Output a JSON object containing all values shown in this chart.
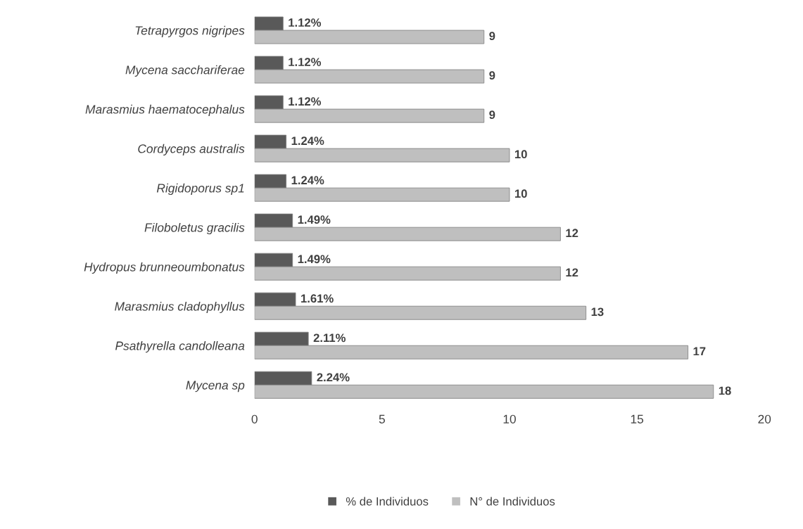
{
  "chart_data": {
    "type": "bar",
    "orientation": "horizontal",
    "categories": [
      "Tetrapyrgos nigripes",
      "Mycena sacchariferae",
      "Marasmius haematocephalus",
      "Cordyceps australis",
      "Rigidoporus sp1",
      "Filoboletus gracilis",
      "Hydropus brunneoumbonatus",
      "Marasmius cladophyllus",
      "Psathyrella candolleana",
      "Mycena sp"
    ],
    "series": [
      {
        "name": "% de Individuos",
        "color": "#595959",
        "values": [
          1.12,
          1.12,
          1.12,
          1.24,
          1.24,
          1.49,
          1.49,
          1.61,
          2.11,
          2.24
        ],
        "value_labels": [
          "1.12%",
          "1.12%",
          "1.12%",
          "1.24%",
          "1.24%",
          "1.49%",
          "1.49%",
          "1.61%",
          "2.11%",
          "2.24%"
        ]
      },
      {
        "name": "N° de Individuos",
        "color": "#bfbfbf",
        "values": [
          9,
          9,
          9,
          10,
          10,
          12,
          12,
          13,
          17,
          18
        ],
        "value_labels": [
          "9",
          "9",
          "9",
          "10",
          "10",
          "12",
          "12",
          "13",
          "17",
          "18"
        ]
      }
    ],
    "xlim": [
      0,
      20
    ],
    "xticks": [
      0,
      5,
      10,
      15,
      20
    ],
    "grid": false,
    "legend": "bottom"
  }
}
